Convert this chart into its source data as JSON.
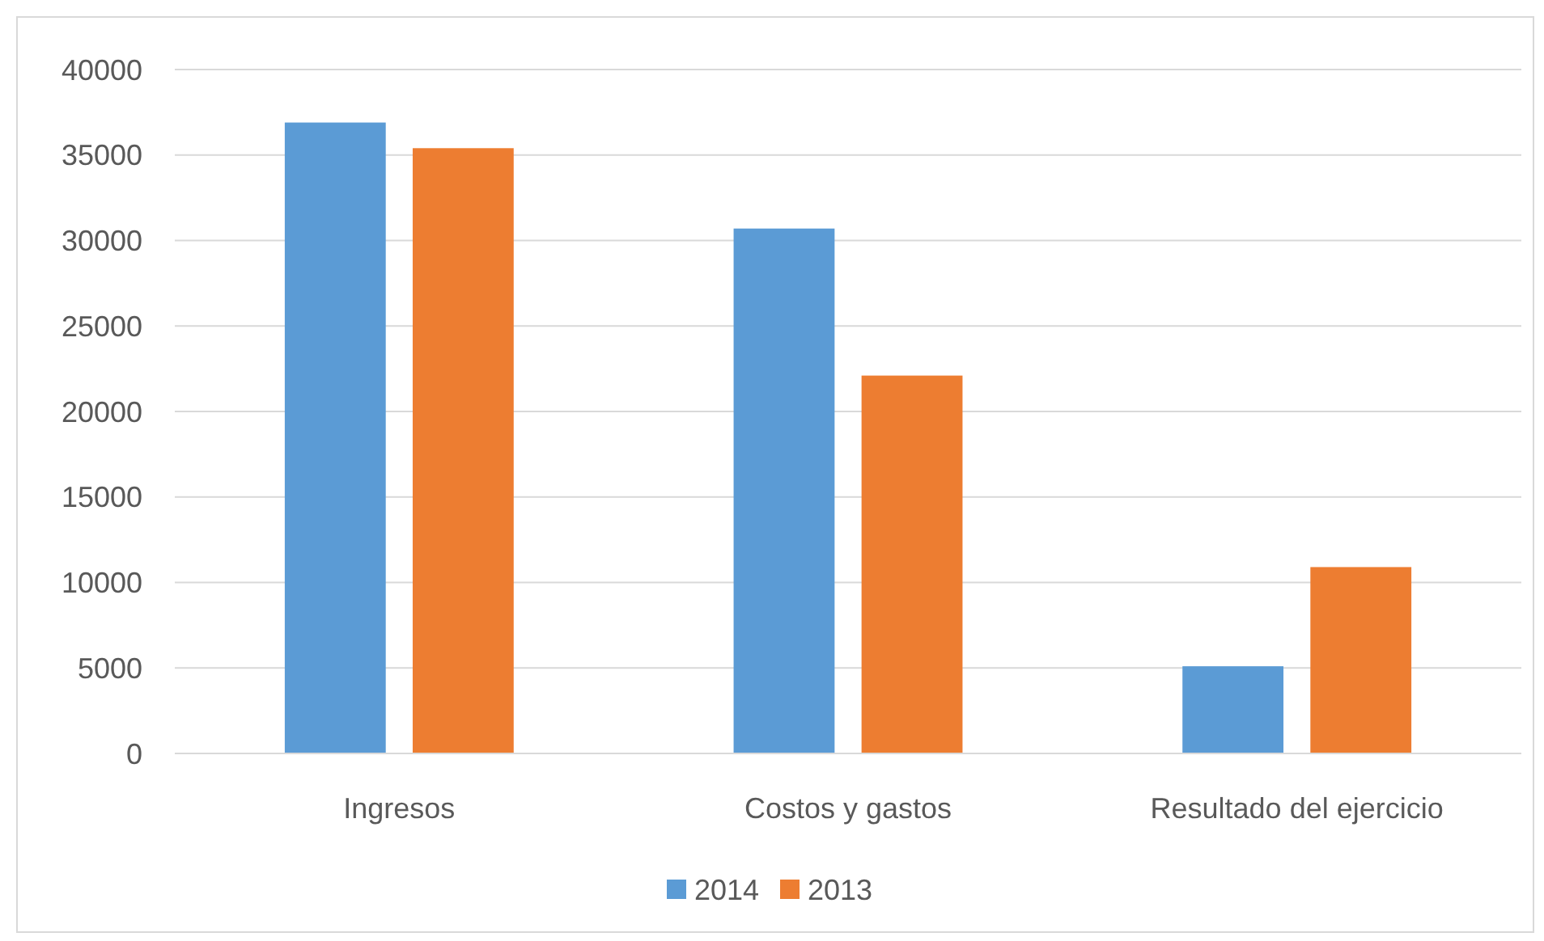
{
  "chart_data": {
    "type": "bar",
    "categories": [
      "Ingresos",
      "Costos y gastos",
      "Resultado del ejercicio"
    ],
    "series": [
      {
        "name": "2014",
        "color": "#5b9bd5",
        "values": [
          36900,
          30700,
          5100
        ]
      },
      {
        "name": "2013",
        "color": "#ed7d31",
        "values": [
          35400,
          22100,
          10900
        ]
      }
    ],
    "ylim": [
      0,
      40000
    ],
    "yticks": [
      0,
      5000,
      10000,
      15000,
      20000,
      25000,
      30000,
      35000,
      40000
    ],
    "grid": "y",
    "legend": "bottom"
  }
}
